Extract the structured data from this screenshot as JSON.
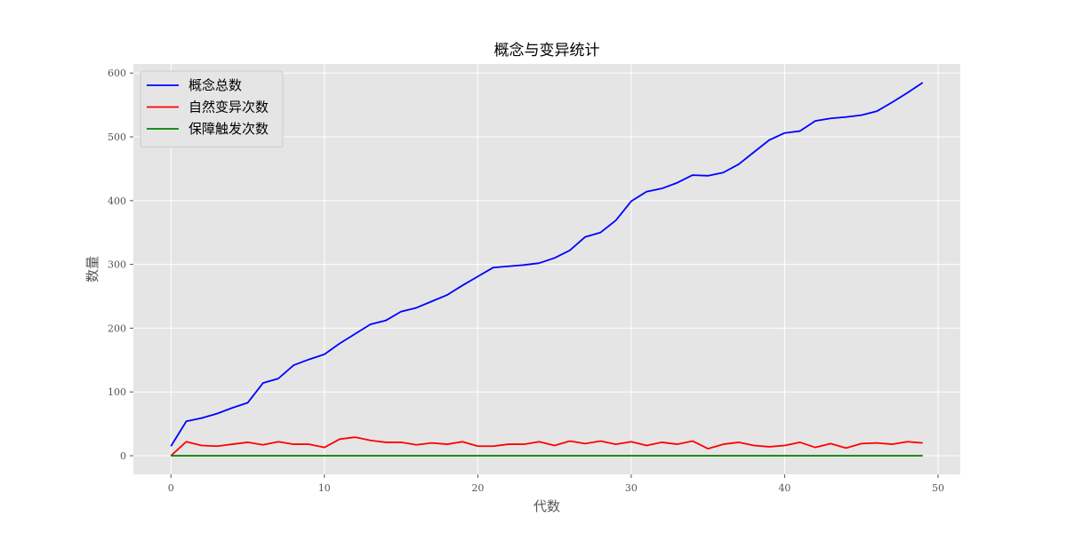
{
  "chart_data": {
    "type": "line",
    "title": "概念与变异统计",
    "xlabel": "代数",
    "ylabel": "数量",
    "xlim": [
      -2.45,
      51.45
    ],
    "ylim": [
      -29.25,
      614.25
    ],
    "xticks": [
      0,
      10,
      20,
      30,
      40,
      50
    ],
    "yticks": [
      0,
      100,
      200,
      300,
      400,
      500,
      600
    ],
    "grid": true,
    "legend_position": "top-left",
    "x": [
      0,
      1,
      2,
      3,
      4,
      5,
      6,
      7,
      8,
      9,
      10,
      11,
      12,
      13,
      14,
      15,
      16,
      17,
      18,
      19,
      20,
      21,
      22,
      23,
      24,
      25,
      26,
      27,
      28,
      29,
      30,
      31,
      32,
      33,
      34,
      35,
      36,
      37,
      38,
      39,
      40,
      41,
      42,
      43,
      44,
      45,
      46,
      47,
      48,
      49
    ],
    "series": [
      {
        "name": "概念总数",
        "color": "#0000ff",
        "values": [
          15,
          54,
          59,
          66,
          75,
          83,
          114,
          121,
          142,
          151,
          159,
          176,
          191,
          206,
          212,
          226,
          232,
          242,
          252,
          267,
          281,
          295,
          297,
          299,
          302,
          310,
          322,
          343,
          350,
          369,
          399,
          414,
          419,
          428,
          440,
          439,
          444,
          457,
          476,
          495,
          506,
          509,
          525,
          529,
          531,
          534,
          540,
          554,
          569,
          585
        ]
      },
      {
        "name": "自然变异次数",
        "color": "#ff0000",
        "values": [
          0,
          22,
          16,
          15,
          18,
          21,
          17,
          22,
          18,
          18,
          13,
          26,
          29,
          24,
          21,
          21,
          17,
          20,
          18,
          22,
          15,
          15,
          18,
          18,
          22,
          16,
          23,
          19,
          23,
          18,
          22,
          16,
          21,
          18,
          23,
          11,
          18,
          21,
          16,
          14,
          16,
          21,
          13,
          19,
          12,
          19,
          20,
          18,
          22,
          20
        ]
      },
      {
        "name": "保障触发次数",
        "color": "#008000",
        "values": [
          0,
          0,
          0,
          0,
          0,
          0,
          0,
          0,
          0,
          0,
          0,
          0,
          0,
          0,
          0,
          0,
          0,
          0,
          0,
          0,
          0,
          0,
          0,
          0,
          0,
          0,
          0,
          0,
          0,
          0,
          0,
          0,
          0,
          0,
          0,
          0,
          0,
          0,
          0,
          0,
          0,
          0,
          0,
          0,
          0,
          0,
          0,
          0,
          0,
          0
        ]
      }
    ],
    "colors": {
      "plot_background": "#e5e5e5",
      "grid": "#ffffff"
    }
  }
}
